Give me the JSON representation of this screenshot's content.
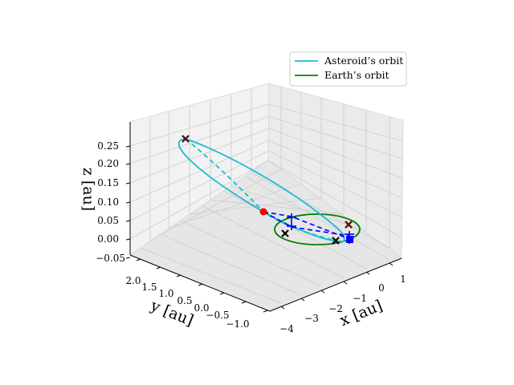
{
  "chart_data": {
    "type": "3d-line",
    "title": "",
    "axes": {
      "x": {
        "label": "x [au]",
        "range": [
          -4.3,
          1.4
        ],
        "ticks": [
          -4,
          -3,
          -2,
          -1,
          0,
          1
        ],
        "tick_labels": [
          "−4",
          "−3",
          "−2",
          "−1",
          "0",
          "1"
        ]
      },
      "y": {
        "label": "y [au]",
        "range": [
          -1.2,
          2.2
        ],
        "ticks": [
          2.0,
          1.5,
          1.0,
          0.5,
          0.0,
          -0.5,
          -1.0
        ],
        "tick_labels": [
          "2.0",
          "1.5",
          "1.0",
          "0.5",
          "0.0",
          "−0.5",
          "−1.0"
        ]
      },
      "z": {
        "label": "z [au]",
        "range": [
          -0.05,
          0.29
        ],
        "ticks": [
          0.25,
          0.2,
          0.15,
          0.1,
          0.05,
          0.0,
          -0.05
        ],
        "tick_labels": [
          "0.25",
          "0.20",
          "0.15",
          "0.10",
          "0.05",
          "0.00",
          "−0.05"
        ]
      }
    },
    "grid": true,
    "legend": {
      "placement": "top-right",
      "entries": [
        {
          "label": "Asteroid’s orbit",
          "color": "#17becf"
        },
        {
          "label": "Earth’s orbit",
          "color": "#008000"
        }
      ]
    },
    "series": [
      {
        "name": "Asteroid’s orbit",
        "color": "#17becf",
        "kind": "ellipse",
        "center": [
          -1.1,
          0.35,
          0.12
        ],
        "semi_major": [
          2.55,
          1.05,
          0.14
        ],
        "semi_minor": [
          0.55,
          -0.35,
          -0.03
        ]
      },
      {
        "name": "Earth’s orbit",
        "color": "#008000",
        "kind": "circle",
        "center": [
          0,
          0,
          0
        ],
        "radius": 1
      }
    ],
    "markers": {
      "sun": {
        "x": -0.9,
        "y": 2.0,
        "z": 0.0,
        "color": "#ff0000"
      },
      "x_marks": [
        {
          "x": -3.5,
          "y": 1.3,
          "z": 0.26,
          "color": "#8b0000"
        },
        {
          "x": 0.7,
          "y": -0.3,
          "z": 0.0,
          "color": "#8b0000"
        },
        {
          "x": -0.9,
          "y": 0.7,
          "z": 0.0,
          "color": "#000000"
        },
        {
          "x": 0.0,
          "y": -1.0,
          "z": 0.0,
          "color": "#000000"
        }
      ]
    }
  }
}
